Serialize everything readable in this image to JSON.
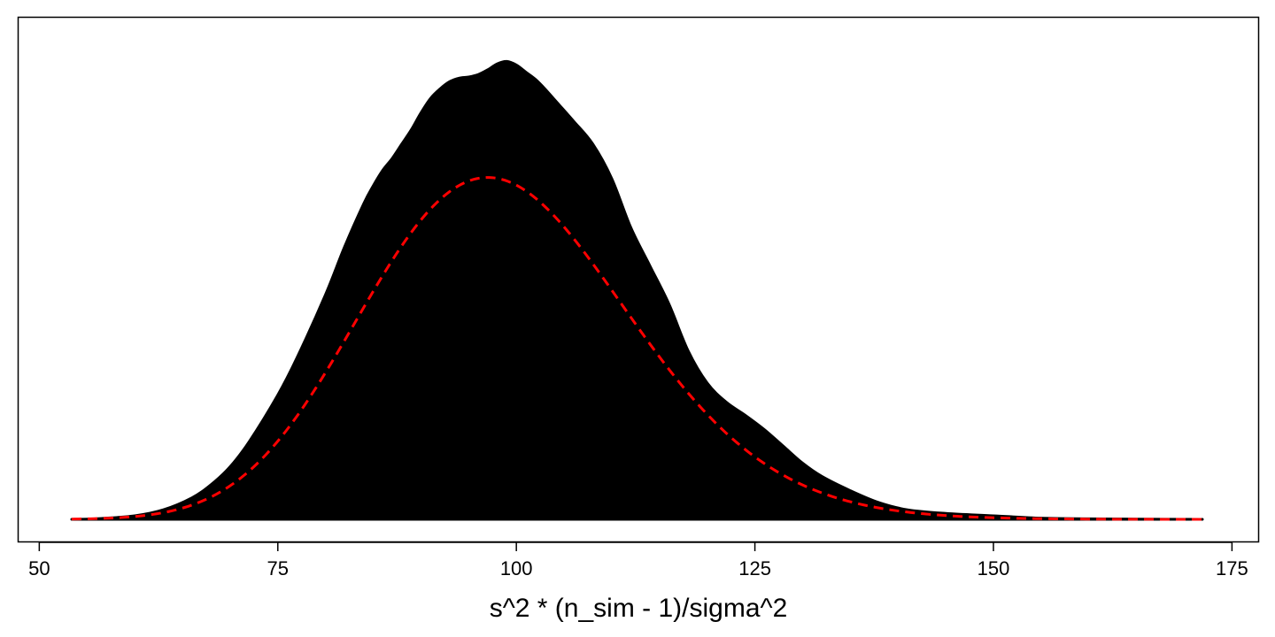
{
  "chart_data": {
    "type": "area",
    "xlabel": "s^2 * (n_sim - 1)/sigma^2",
    "ylabel": "",
    "xlim": [
      53.4,
      171.9
    ],
    "ylim": [
      0,
      0.0404
    ],
    "xticks": [
      50,
      75,
      100,
      125,
      150,
      175
    ],
    "xtick_labels": [
      "50",
      "75",
      "100",
      "125",
      "150",
      "175"
    ],
    "grid": false,
    "series": [
      {
        "kind": "empirical-density",
        "style": "filled",
        "fill": "#000000",
        "x": [
          53.4,
          56,
          60,
          63,
          66,
          68,
          70,
          72,
          75,
          77,
          80,
          82,
          84,
          85,
          86,
          87,
          88,
          89,
          90,
          91,
          92,
          93,
          94,
          95,
          96,
          97,
          98,
          99,
          100,
          101,
          102,
          103,
          104,
          106,
          108,
          110,
          112,
          114,
          116,
          118,
          120,
          122,
          124,
          126,
          128,
          130,
          132,
          135,
          138,
          141,
          145,
          150,
          155,
          160,
          165,
          171.9
        ],
        "y": [
          0,
          5e-05,
          0.0003,
          0.0008,
          0.0018,
          0.0029,
          0.0044,
          0.0065,
          0.0104,
          0.0135,
          0.0188,
          0.0228,
          0.0264,
          0.0279,
          0.0292,
          0.0302,
          0.0314,
          0.0326,
          0.034,
          0.0352,
          0.036,
          0.0366,
          0.0369,
          0.037,
          0.0372,
          0.0376,
          0.0381,
          0.0383,
          0.038,
          0.0374,
          0.0368,
          0.036,
          0.0351,
          0.0333,
          0.0314,
          0.0285,
          0.0244,
          0.0212,
          0.018,
          0.0141,
          0.0114,
          0.0098,
          0.0087,
          0.0075,
          0.0061,
          0.0047,
          0.0036,
          0.0024,
          0.0014,
          0.0008,
          0.0005,
          0.0003,
          0.0001,
          5e-05,
          2e-05,
          0
        ]
      },
      {
        "kind": "theoretical-chi-square-density",
        "style": "dashed",
        "color": "#ff0000",
        "df": 99
      }
    ]
  }
}
